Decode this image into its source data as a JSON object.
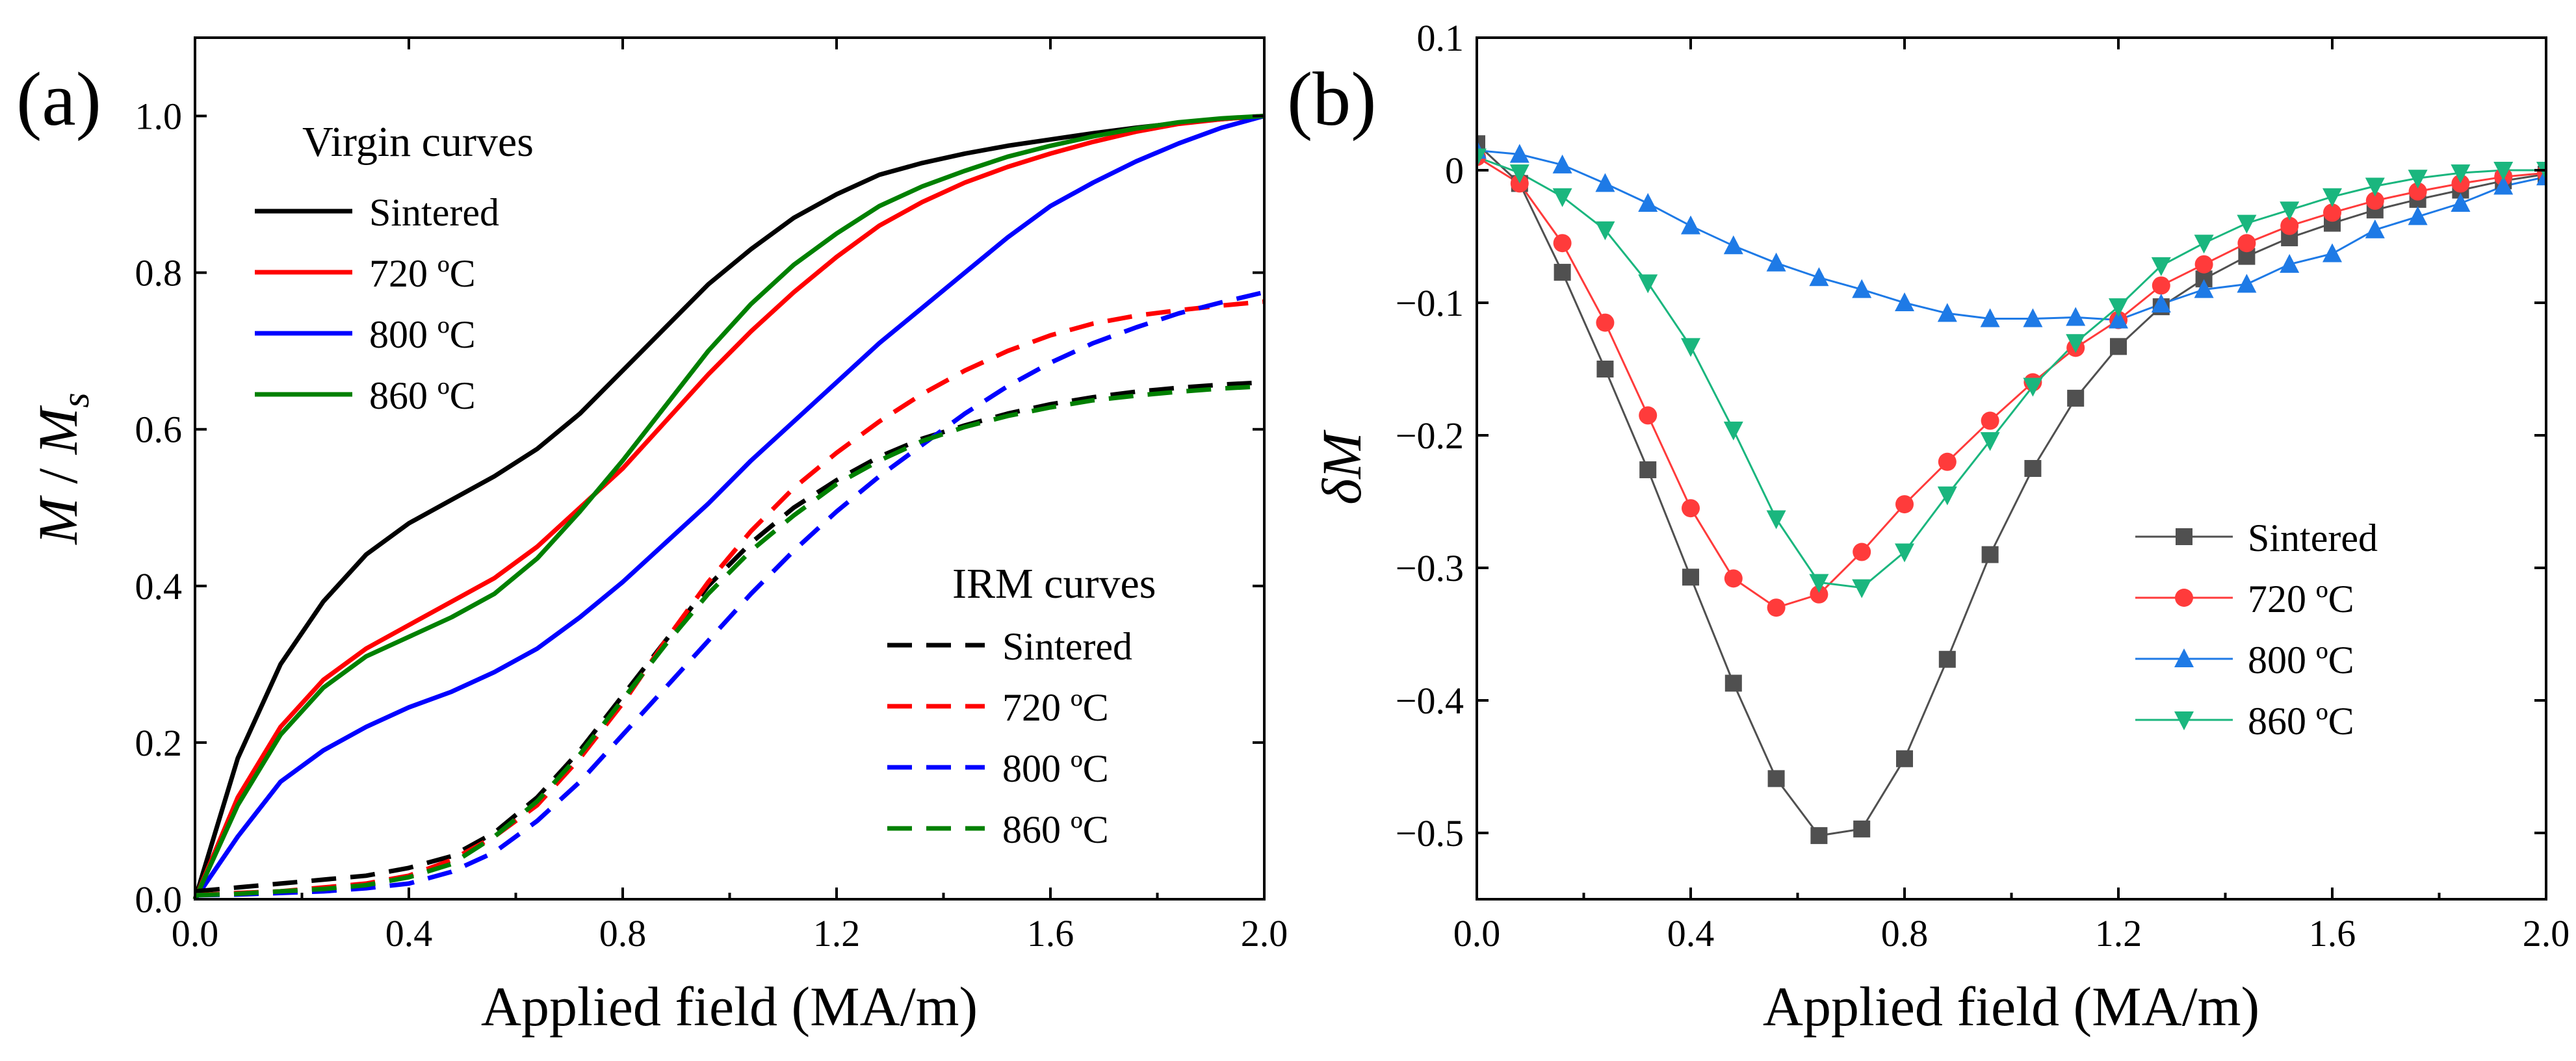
{
  "chart_data": [
    {
      "panel": "(a)",
      "type": "line",
      "xlabel": "Applied field (MA/m)",
      "ylabel_main": "M",
      "ylabel_sep": " / ",
      "ylabel_M": "M",
      "ylabel_sub": "s",
      "xlim": [
        0,
        2.0
      ],
      "ylim": [
        0,
        1.1
      ],
      "xticks": [
        "0.0",
        "0.4",
        "0.8",
        "1.2",
        "1.6",
        "2.0"
      ],
      "yticks": [
        "0.0",
        "0.2",
        "0.4",
        "0.6",
        "0.8",
        "1.0"
      ],
      "legend_virgin_title": "Virgin curves",
      "legend_irm_title": "IRM curves",
      "series": [
        {
          "name": "Sintered",
          "group": "virgin",
          "color": "#000000",
          "style": "solid",
          "x": [
            0,
            0.08,
            0.16,
            0.24,
            0.32,
            0.4,
            0.48,
            0.56,
            0.64,
            0.72,
            0.8,
            0.88,
            0.96,
            1.04,
            1.12,
            1.2,
            1.28,
            1.36,
            1.44,
            1.52,
            1.6,
            1.68,
            1.76,
            1.84,
            1.92,
            2.0
          ],
          "y": [
            0,
            0.18,
            0.3,
            0.38,
            0.44,
            0.48,
            0.51,
            0.54,
            0.575,
            0.62,
            0.675,
            0.73,
            0.785,
            0.83,
            0.87,
            0.9,
            0.925,
            0.94,
            0.952,
            0.962,
            0.97,
            0.978,
            0.985,
            0.991,
            0.996,
            1.0
          ]
        },
        {
          "name": "720 ºC",
          "group": "virgin",
          "color": "#ff0000",
          "style": "solid",
          "x": [
            0,
            0.08,
            0.16,
            0.24,
            0.32,
            0.4,
            0.48,
            0.56,
            0.64,
            0.72,
            0.8,
            0.88,
            0.96,
            1.04,
            1.12,
            1.2,
            1.28,
            1.36,
            1.44,
            1.52,
            1.6,
            1.68,
            1.76,
            1.84,
            1.92,
            2.0
          ],
          "y": [
            0,
            0.13,
            0.22,
            0.28,
            0.32,
            0.35,
            0.38,
            0.41,
            0.45,
            0.5,
            0.55,
            0.61,
            0.67,
            0.725,
            0.775,
            0.82,
            0.86,
            0.89,
            0.915,
            0.935,
            0.952,
            0.967,
            0.98,
            0.99,
            0.996,
            1.0
          ]
        },
        {
          "name": "800 ºC",
          "group": "virgin",
          "color": "#0000ff",
          "style": "solid",
          "x": [
            0,
            0.08,
            0.16,
            0.24,
            0.32,
            0.4,
            0.48,
            0.56,
            0.64,
            0.72,
            0.8,
            0.88,
            0.96,
            1.04,
            1.12,
            1.2,
            1.28,
            1.36,
            1.44,
            1.52,
            1.6,
            1.68,
            1.76,
            1.84,
            1.92,
            2.0
          ],
          "y": [
            0,
            0.08,
            0.15,
            0.19,
            0.22,
            0.245,
            0.265,
            0.29,
            0.32,
            0.36,
            0.405,
            0.455,
            0.505,
            0.56,
            0.61,
            0.66,
            0.71,
            0.755,
            0.8,
            0.845,
            0.885,
            0.915,
            0.942,
            0.965,
            0.985,
            1.0
          ]
        },
        {
          "name": "860 ºC",
          "group": "virgin",
          "color": "#008000",
          "style": "solid",
          "x": [
            0,
            0.08,
            0.16,
            0.24,
            0.32,
            0.4,
            0.48,
            0.56,
            0.64,
            0.72,
            0.8,
            0.88,
            0.96,
            1.04,
            1.12,
            1.2,
            1.28,
            1.36,
            1.44,
            1.52,
            1.6,
            1.68,
            1.76,
            1.84,
            1.92,
            2.0
          ],
          "y": [
            0,
            0.12,
            0.21,
            0.27,
            0.31,
            0.335,
            0.36,
            0.39,
            0.435,
            0.495,
            0.56,
            0.63,
            0.7,
            0.76,
            0.81,
            0.85,
            0.885,
            0.91,
            0.93,
            0.948,
            0.962,
            0.974,
            0.984,
            0.992,
            0.997,
            1.0
          ]
        },
        {
          "name": "Sintered",
          "group": "irm",
          "color": "#000000",
          "style": "dashed",
          "x": [
            0,
            0.08,
            0.16,
            0.24,
            0.32,
            0.4,
            0.48,
            0.56,
            0.64,
            0.72,
            0.8,
            0.88,
            0.96,
            1.04,
            1.12,
            1.2,
            1.28,
            1.36,
            1.44,
            1.52,
            1.6,
            1.68,
            1.76,
            1.84,
            1.92,
            2.0
          ],
          "y": [
            0.01,
            0.015,
            0.02,
            0.025,
            0.03,
            0.04,
            0.055,
            0.085,
            0.13,
            0.19,
            0.26,
            0.33,
            0.4,
            0.455,
            0.5,
            0.535,
            0.565,
            0.588,
            0.605,
            0.62,
            0.632,
            0.641,
            0.648,
            0.653,
            0.657,
            0.66
          ]
        },
        {
          "name": "720 ºC",
          "group": "irm",
          "color": "#ff0000",
          "style": "dashed",
          "x": [
            0,
            0.08,
            0.16,
            0.24,
            0.32,
            0.4,
            0.48,
            0.56,
            0.64,
            0.72,
            0.8,
            0.88,
            0.96,
            1.04,
            1.12,
            1.2,
            1.28,
            1.36,
            1.44,
            1.52,
            1.6,
            1.68,
            1.76,
            1.84,
            1.92,
            2.0
          ],
          "y": [
            0.005,
            0.008,
            0.01,
            0.015,
            0.02,
            0.03,
            0.05,
            0.08,
            0.12,
            0.18,
            0.25,
            0.33,
            0.405,
            0.47,
            0.525,
            0.57,
            0.61,
            0.645,
            0.675,
            0.7,
            0.72,
            0.735,
            0.745,
            0.752,
            0.758,
            0.763
          ]
        },
        {
          "name": "800 ºC",
          "group": "irm",
          "color": "#0000ff",
          "style": "dashed",
          "x": [
            0,
            0.08,
            0.16,
            0.24,
            0.32,
            0.4,
            0.48,
            0.56,
            0.64,
            0.72,
            0.8,
            0.88,
            0.96,
            1.04,
            1.12,
            1.2,
            1.28,
            1.36,
            1.44,
            1.52,
            1.6,
            1.68,
            1.76,
            1.84,
            1.92,
            2.0
          ],
          "y": [
            0.005,
            0.006,
            0.008,
            0.01,
            0.014,
            0.02,
            0.035,
            0.06,
            0.1,
            0.15,
            0.21,
            0.27,
            0.33,
            0.39,
            0.445,
            0.495,
            0.54,
            0.58,
            0.62,
            0.655,
            0.685,
            0.71,
            0.73,
            0.748,
            0.762,
            0.775
          ]
        },
        {
          "name": "860 ºC",
          "group": "irm",
          "color": "#008000",
          "style": "dashed",
          "x": [
            0,
            0.08,
            0.16,
            0.24,
            0.32,
            0.4,
            0.48,
            0.56,
            0.64,
            0.72,
            0.8,
            0.88,
            0.96,
            1.04,
            1.12,
            1.2,
            1.28,
            1.36,
            1.44,
            1.52,
            1.6,
            1.68,
            1.76,
            1.84,
            1.92,
            2.0
          ],
          "y": [
            0.005,
            0.007,
            0.01,
            0.013,
            0.018,
            0.028,
            0.045,
            0.08,
            0.125,
            0.185,
            0.255,
            0.325,
            0.39,
            0.445,
            0.49,
            0.53,
            0.56,
            0.585,
            0.603,
            0.617,
            0.628,
            0.637,
            0.643,
            0.648,
            0.652,
            0.655
          ]
        }
      ]
    },
    {
      "panel": "(b)",
      "type": "line",
      "xlabel": "Applied field (MA/m)",
      "ylabel": "δM",
      "xlim": [
        0,
        2.0
      ],
      "ylim": [
        -0.55,
        0.1
      ],
      "xticks": [
        "0.0",
        "0.4",
        "0.8",
        "1.2",
        "1.6",
        "2.0"
      ],
      "yticks": [
        "0.1",
        "0",
        "−0.1",
        "−0.2",
        "−0.3",
        "−0.4",
        "−0.5"
      ],
      "series": [
        {
          "name": "Sintered",
          "color": "#505050",
          "marker": "square",
          "x": [
            0,
            0.08,
            0.16,
            0.24,
            0.32,
            0.4,
            0.48,
            0.56,
            0.64,
            0.72,
            0.8,
            0.88,
            0.96,
            1.04,
            1.12,
            1.2,
            1.28,
            1.36,
            1.44,
            1.52,
            1.6,
            1.68,
            1.76,
            1.84,
            1.92,
            2.0
          ],
          "y": [
            0.02,
            -0.01,
            -0.077,
            -0.15,
            -0.226,
            -0.307,
            -0.387,
            -0.459,
            -0.502,
            -0.497,
            -0.444,
            -0.369,
            -0.29,
            -0.225,
            -0.172,
            -0.133,
            -0.103,
            -0.082,
            -0.065,
            -0.051,
            -0.04,
            -0.03,
            -0.022,
            -0.015,
            -0.008,
            -0.003
          ]
        },
        {
          "name": "720 ºC",
          "color": "#ff3b3b",
          "marker": "circle",
          "x": [
            0,
            0.08,
            0.16,
            0.24,
            0.32,
            0.4,
            0.48,
            0.56,
            0.64,
            0.72,
            0.8,
            0.88,
            0.96,
            1.04,
            1.12,
            1.2,
            1.28,
            1.36,
            1.44,
            1.52,
            1.6,
            1.68,
            1.76,
            1.84,
            1.92,
            2.0
          ],
          "y": [
            0.01,
            -0.01,
            -0.055,
            -0.115,
            -0.185,
            -0.255,
            -0.308,
            -0.33,
            -0.32,
            -0.288,
            -0.252,
            -0.22,
            -0.189,
            -0.16,
            -0.134,
            -0.113,
            -0.087,
            -0.071,
            -0.055,
            -0.042,
            -0.032,
            -0.023,
            -0.016,
            -0.01,
            -0.005,
            -0.002
          ]
        },
        {
          "name": "800 ºC",
          "color": "#1e7ae6",
          "marker": "triangle-up",
          "x": [
            0,
            0.08,
            0.16,
            0.24,
            0.32,
            0.4,
            0.48,
            0.56,
            0.64,
            0.72,
            0.8,
            0.88,
            0.96,
            1.04,
            1.12,
            1.2,
            1.28,
            1.36,
            1.44,
            1.52,
            1.6,
            1.68,
            1.76,
            1.84,
            1.92,
            2.0
          ],
          "y": [
            0.015,
            0.012,
            0.004,
            -0.01,
            -0.025,
            -0.042,
            -0.057,
            -0.07,
            -0.081,
            -0.09,
            -0.1,
            -0.108,
            -0.112,
            -0.112,
            -0.111,
            -0.113,
            -0.101,
            -0.09,
            -0.086,
            -0.071,
            -0.063,
            -0.045,
            -0.035,
            -0.025,
            -0.012,
            -0.005
          ]
        },
        {
          "name": "860 ºC",
          "color": "#1ab67e",
          "marker": "triangle-down",
          "x": [
            0,
            0.08,
            0.16,
            0.24,
            0.32,
            0.4,
            0.48,
            0.56,
            0.64,
            0.72,
            0.8,
            0.88,
            0.96,
            1.04,
            1.12,
            1.2,
            1.28,
            1.36,
            1.44,
            1.52,
            1.6,
            1.68,
            1.76,
            1.84,
            1.92,
            2.0
          ],
          "y": [
            0.01,
            -0.002,
            -0.02,
            -0.045,
            -0.085,
            -0.133,
            -0.196,
            -0.263,
            -0.311,
            -0.315,
            -0.288,
            -0.245,
            -0.204,
            -0.163,
            -0.13,
            -0.103,
            -0.072,
            -0.055,
            -0.04,
            -0.03,
            -0.02,
            -0.012,
            -0.006,
            -0.002,
            0.0,
            0.0
          ]
        }
      ]
    }
  ]
}
